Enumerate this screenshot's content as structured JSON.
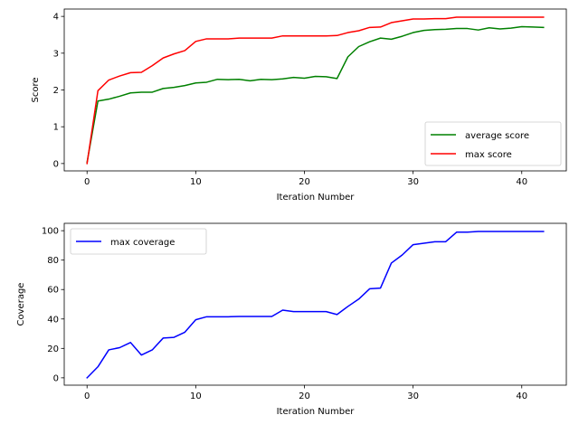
{
  "chart_data": [
    {
      "type": "line",
      "xlabel": "Iteration Number",
      "ylabel": "Score",
      "xlim": [
        -2.1,
        44.1
      ],
      "ylim": [
        -0.2,
        4.2
      ],
      "xticks": [
        0,
        10,
        20,
        30,
        40
      ],
      "yticks": [
        0,
        1,
        2,
        3,
        4
      ],
      "grid": false,
      "legend_position": "lower-right",
      "x": [
        0,
        1,
        2,
        3,
        4,
        5,
        6,
        7,
        8,
        9,
        10,
        11,
        12,
        13,
        14,
        15,
        16,
        17,
        18,
        19,
        20,
        21,
        22,
        23,
        24,
        25,
        26,
        27,
        28,
        29,
        30,
        31,
        32,
        33,
        34,
        35,
        36,
        37,
        38,
        39,
        40,
        41,
        42
      ],
      "series": [
        {
          "name": "average score",
          "color": "#008000",
          "values": [
            0.03,
            1.7,
            1.75,
            1.83,
            1.92,
            1.94,
            1.94,
            2.04,
            2.07,
            2.12,
            2.19,
            2.21,
            2.29,
            2.28,
            2.29,
            2.25,
            2.29,
            2.28,
            2.3,
            2.34,
            2.32,
            2.37,
            2.36,
            2.31,
            2.9,
            3.18,
            3.31,
            3.41,
            3.38,
            3.46,
            3.56,
            3.62,
            3.64,
            3.65,
            3.67,
            3.67,
            3.63,
            3.69,
            3.66,
            3.68,
            3.72,
            3.71,
            3.7
          ]
        },
        {
          "name": "max score",
          "color": "#ff0000",
          "values": [
            0.0,
            1.98,
            2.27,
            2.38,
            2.47,
            2.48,
            2.66,
            2.87,
            2.98,
            3.07,
            3.32,
            3.39,
            3.39,
            3.39,
            3.41,
            3.41,
            3.41,
            3.41,
            3.47,
            3.47,
            3.47,
            3.47,
            3.47,
            3.48,
            3.56,
            3.61,
            3.7,
            3.71,
            3.83,
            3.88,
            3.93,
            3.93,
            3.94,
            3.94,
            3.98,
            3.98,
            3.98,
            3.98,
            3.98,
            3.98,
            3.98,
            3.98,
            3.98
          ]
        }
      ]
    },
    {
      "type": "line",
      "xlabel": "Iteration Number",
      "ylabel": "Coverage",
      "xlim": [
        -2.1,
        44.1
      ],
      "ylim": [
        -5,
        105
      ],
      "xticks": [
        0,
        10,
        20,
        30,
        40
      ],
      "yticks": [
        0,
        20,
        40,
        60,
        80,
        100
      ],
      "grid": false,
      "legend_position": "upper-left",
      "x": [
        0,
        1,
        2,
        3,
        4,
        5,
        6,
        7,
        8,
        9,
        10,
        11,
        12,
        13,
        14,
        15,
        16,
        17,
        18,
        19,
        20,
        21,
        22,
        23,
        24,
        25,
        26,
        27,
        28,
        29,
        30,
        31,
        32,
        33,
        34,
        35,
        36,
        37,
        38,
        39,
        40,
        41,
        42
      ],
      "series": [
        {
          "name": "max coverage",
          "color": "#0000ff",
          "values": [
            0,
            7.5,
            19,
            20.5,
            24,
            15.5,
            19,
            27,
            27.5,
            31,
            39.5,
            41.5,
            41.5,
            41.5,
            41.7,
            41.7,
            41.7,
            41.7,
            46,
            45,
            45,
            45,
            45,
            43,
            48.5,
            53.5,
            60.5,
            61,
            78,
            83.5,
            90.5,
            91.5,
            92.5,
            92.5,
            99,
            99,
            99.5,
            99.5,
            99.5,
            99.5,
            99.5,
            99.5,
            99.5
          ]
        }
      ]
    }
  ]
}
